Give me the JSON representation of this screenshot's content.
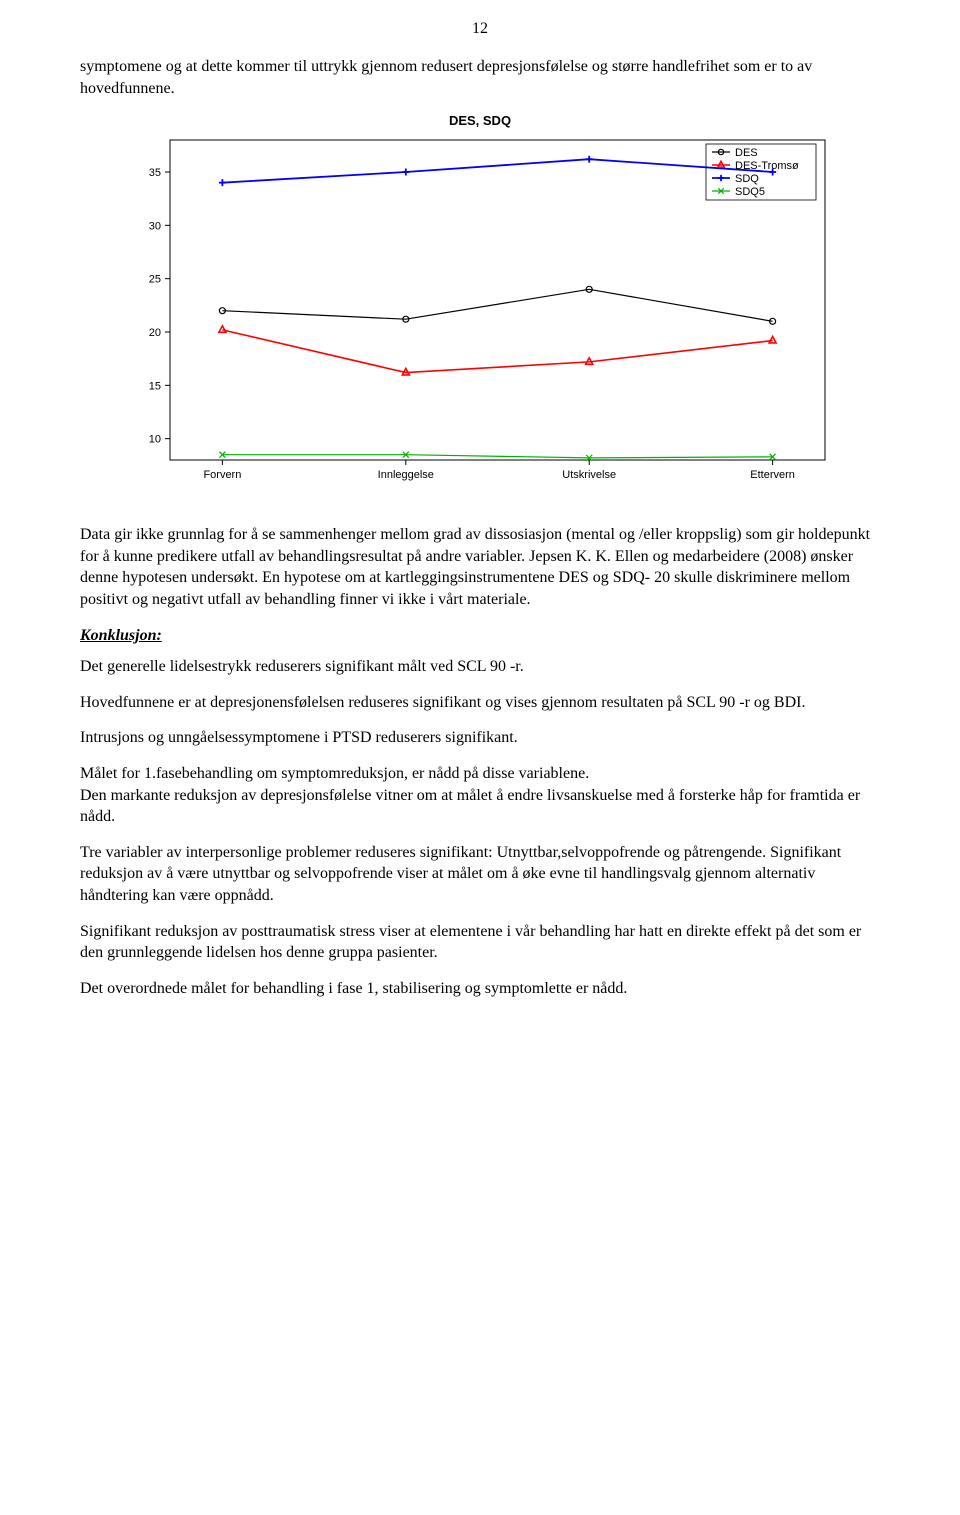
{
  "page_number": "12",
  "intro_paragraph": "symptomene og at dette kommer til uttrykk gjennom redusert depresjonsfølelse og større handlefrihet som er to av hovedfunnene.",
  "chart": {
    "type": "line",
    "title": "DES, SDQ",
    "x_categories": [
      "Forvern",
      "Innleggelse",
      "Utskrivelse",
      "Ettervern"
    ],
    "ylim": [
      8,
      38
    ],
    "yticks": [
      10,
      15,
      20,
      25,
      30,
      35
    ],
    "background_color": "#ffffff",
    "axis_color": "#000000",
    "box": true,
    "series": [
      {
        "name": "DES",
        "values": [
          22,
          21.2,
          24,
          21
        ],
        "color": "#000000",
        "line_width": 1.2,
        "marker": "circle-open",
        "marker_size": 6
      },
      {
        "name": "DES-Tromsø",
        "values": [
          20.2,
          16.2,
          17.2,
          19.2
        ],
        "color": "#ff0000",
        "line_width": 1.6,
        "marker": "triangle-open",
        "marker_size": 7
      },
      {
        "name": "SDQ",
        "values": [
          34,
          35,
          36.2,
          35
        ],
        "color": "#0000ff",
        "line_width": 1.8,
        "marker": "plus",
        "marker_size": 7
      },
      {
        "name": "SDQ5",
        "values": [
          8.5,
          8.5,
          8.2,
          8.3
        ],
        "color": "#00b200",
        "line_width": 1.2,
        "marker": "x",
        "marker_size": 6
      }
    ],
    "legend": {
      "position": "top-right",
      "items": [
        "DES",
        "DES-Tromsø",
        "SDQ",
        "SDQ5"
      ]
    }
  },
  "paragraph_after_chart": "Data gir ikke grunnlag for å se sammenhenger mellom grad av dissosiasjon (mental og /eller kroppslig) som gir holdepunkt for å kunne predikere utfall av behandlingsresultat på andre variabler. Jepsen K. K. Ellen og medarbeidere (2008) ønsker denne hypotesen undersøkt. En hypotese om at kartleggingsinstrumentene DES og SDQ- 20 skulle diskriminere mellom positivt og negativt utfall av behandling finner vi ikke i vårt materiale.",
  "konklusjon_label": "Konklusjon:",
  "p1": "Det generelle lidelsestrykk reduserers signifikant målt ved SCL 90 -r.",
  "p2": "Hovedfunnene er at depresjonensfølelsen reduseres signifikant og vises gjennom resultaten på SCL 90 -r og BDI.",
  "p3": "Intrusjons og unngåelsessymptomene i PTSD reduserers signifikant.",
  "p4": "Målet for 1.fasebehandling om symptomreduksjon, er nådd på disse variablene.\nDen markante reduksjon av depresjonsfølelse vitner om at målet å endre livsanskuelse med å forsterke håp for framtida er nådd.",
  "p5": "Tre variabler av interpersonlige problemer reduseres signifikant: Utnyttbar,selvoppofrende og påtrengende. Signifikant reduksjon av å være utnyttbar og selvoppofrende viser at målet om å øke evne til handlingsvalg gjennom alternativ håndtering kan være oppnådd.",
  "p6": "Signifikant reduksjon av posttraumatisk stress viser at elementene i vår behandling har hatt en direkte effekt på det som er den grunnleggende lidelsen hos denne gruppa pasienter.",
  "p7": "Det overordnede målet for behandling i fase 1, stabilisering og symptomlette er nådd."
}
